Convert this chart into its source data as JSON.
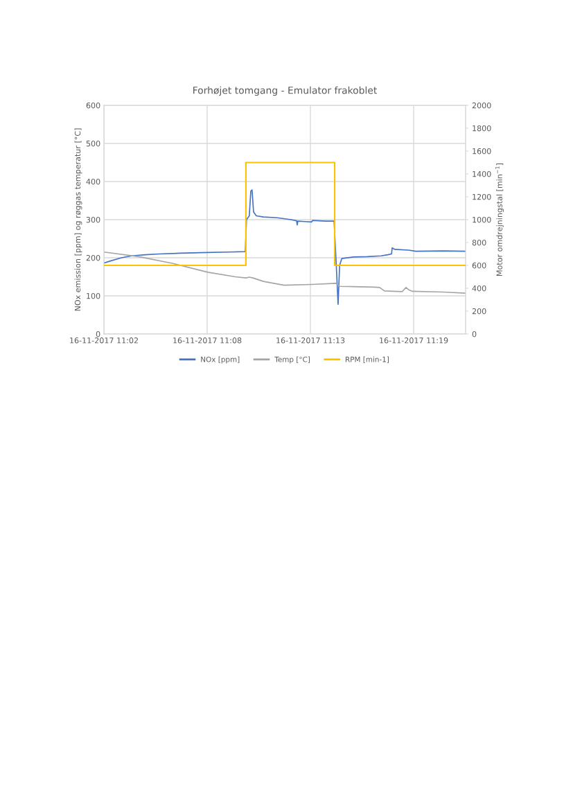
{
  "chart_data": {
    "type": "line",
    "title": "Forhøjet tomgang - Emulator frakoblet",
    "ylabel": "NOx emission [ppm] og røggas temperatur [°C]",
    "y2label": "Motor omdrejningstal [min$^{−1}$]",
    "xlim": [
      "2017-11-16T11:02:24",
      "2017-11-16T11:22:01"
    ],
    "xticks": [
      {
        "value": "2017-11-16T11:02:24",
        "label": "16-11-2017 11:02"
      },
      {
        "value": "2017-11-16T11:08:00",
        "label": "16-11-2017 11:08"
      },
      {
        "value": "2017-11-16T11:13:36",
        "label": "16-11-2017 11:13"
      },
      {
        "value": "2017-11-16T11:19:12",
        "label": "16-11-2017 11:19"
      }
    ],
    "ylim": [
      0,
      600
    ],
    "yticks": [
      0,
      100,
      200,
      300,
      400,
      500,
      600
    ],
    "y2lim": [
      0,
      2000
    ],
    "y2ticks": [
      0,
      200,
      400,
      600,
      800,
      1000,
      1200,
      1400,
      1600,
      1800,
      2000
    ],
    "grid": true,
    "legend": "bottom",
    "marker": "none",
    "line_style": "solid",
    "series": [
      {
        "name": "NOx [ppm]",
        "color": "#4472c4",
        "x": [
          "2017-11-16T11:02:24",
          "2017-11-16T11:02:47",
          "2017-11-16T11:03:21",
          "2017-11-16T11:03:54",
          "2017-11-16T11:04:39",
          "2017-11-16T11:05:24",
          "2017-11-16T11:06:32",
          "2017-11-16T11:08:02",
          "2017-11-16T11:09:10",
          "2017-11-16T11:10:04",
          "2017-11-16T11:10:08",
          "2017-11-16T11:10:17",
          "2017-11-16T11:10:22",
          "2017-11-16T11:10:26",
          "2017-11-16T11:10:31",
          "2017-11-16T11:10:40",
          "2017-11-16T11:11:03",
          "2017-11-16T11:11:48",
          "2017-11-16T11:12:33",
          "2017-11-16T11:12:51",
          "2017-11-16T11:12:53",
          "2017-11-16T11:12:55",
          "2017-11-16T11:13:18",
          "2017-11-16T11:13:40",
          "2017-11-16T11:13:43",
          "2017-11-16T11:14:25",
          "2017-11-16T11:14:53",
          "2017-11-16T11:14:59",
          "2017-11-16T11:15:06",
          "2017-11-16T11:15:11",
          "2017-11-16T11:15:18",
          "2017-11-16T11:15:56",
          "2017-11-16T11:16:41",
          "2017-11-16T11:17:26",
          "2017-11-16T11:17:48",
          "2017-11-16T11:18:00",
          "2017-11-16T11:18:02",
          "2017-11-16T11:18:11",
          "2017-11-16T11:18:56",
          "2017-11-16T11:19:19",
          "2017-11-16T11:20:49",
          "2017-11-16T11:22:01"
        ],
        "values": [
          186,
          192,
          200,
          205,
          208,
          210,
          212,
          214,
          215,
          216,
          300,
          310,
          375,
          378,
          320,
          310,
          307,
          305,
          300,
          297,
          286,
          296,
          295,
          294,
          298,
          296,
          296,
          200,
          78,
          180,
          198,
          202,
          203,
          205,
          208,
          210,
          226,
          222,
          220,
          217,
          218,
          217
        ]
      },
      {
        "name": "Temp [°C]",
        "color": "#a5a5a5",
        "x": [
          "2017-11-16T11:02:24",
          "2017-11-16T11:04:17",
          "2017-11-16T11:06:09",
          "2017-11-16T11:08:02",
          "2017-11-16T11:09:32",
          "2017-11-16T11:10:06",
          "2017-11-16T11:10:17",
          "2017-11-16T11:10:29",
          "2017-11-16T11:11:03",
          "2017-11-16T11:12:10",
          "2017-11-16T11:13:40",
          "2017-11-16T11:14:59",
          "2017-11-16T11:15:11",
          "2017-11-16T11:17:03",
          "2017-11-16T11:17:21",
          "2017-11-16T11:17:37",
          "2017-11-16T11:18:34",
          "2017-11-16T11:18:38",
          "2017-11-16T11:18:47",
          "2017-11-16T11:18:56",
          "2017-11-16T11:19:08",
          "2017-11-16T11:20:49",
          "2017-11-16T11:22:01"
        ],
        "values": [
          215,
          203,
          185,
          162,
          150,
          147,
          149,
          147,
          138,
          128,
          130,
          133,
          125,
          123,
          122,
          113,
          111,
          114,
          122,
          116,
          112,
          110,
          107
        ]
      },
      {
        "name": "RPM [min-1]",
        "color": "#ffc000",
        "type": "step",
        "axis": "y2",
        "x": [
          "2017-11-16T11:02:24",
          "2017-11-16T11:10:06",
          "2017-11-16T11:14:55",
          "2017-11-16T11:22:01"
        ],
        "values": [
          600,
          1500,
          600,
          600
        ]
      }
    ]
  }
}
